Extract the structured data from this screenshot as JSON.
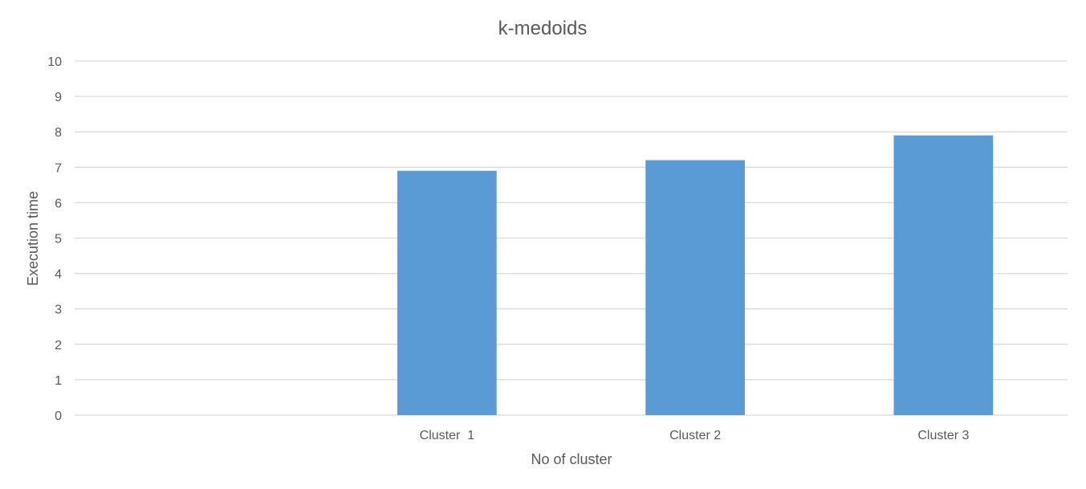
{
  "chart_data": {
    "type": "bar",
    "title": "k-medoids",
    "xlabel": "No of cluster",
    "ylabel": "Execution time",
    "categories": [
      "",
      "Cluster  1",
      "Cluster 2",
      "Cluster 3"
    ],
    "values": [
      null,
      6.9,
      7.2,
      7.9
    ],
    "ylim": [
      0,
      10
    ],
    "yticks": [
      "0",
      "1",
      "2",
      "3",
      "4",
      "5",
      "6",
      "7",
      "8",
      "9",
      "10"
    ],
    "grid": true,
    "legend": "none",
    "colors": {
      "bar": "#5b9bd5",
      "grid": "#d9d9d9",
      "text": "#595959"
    }
  }
}
